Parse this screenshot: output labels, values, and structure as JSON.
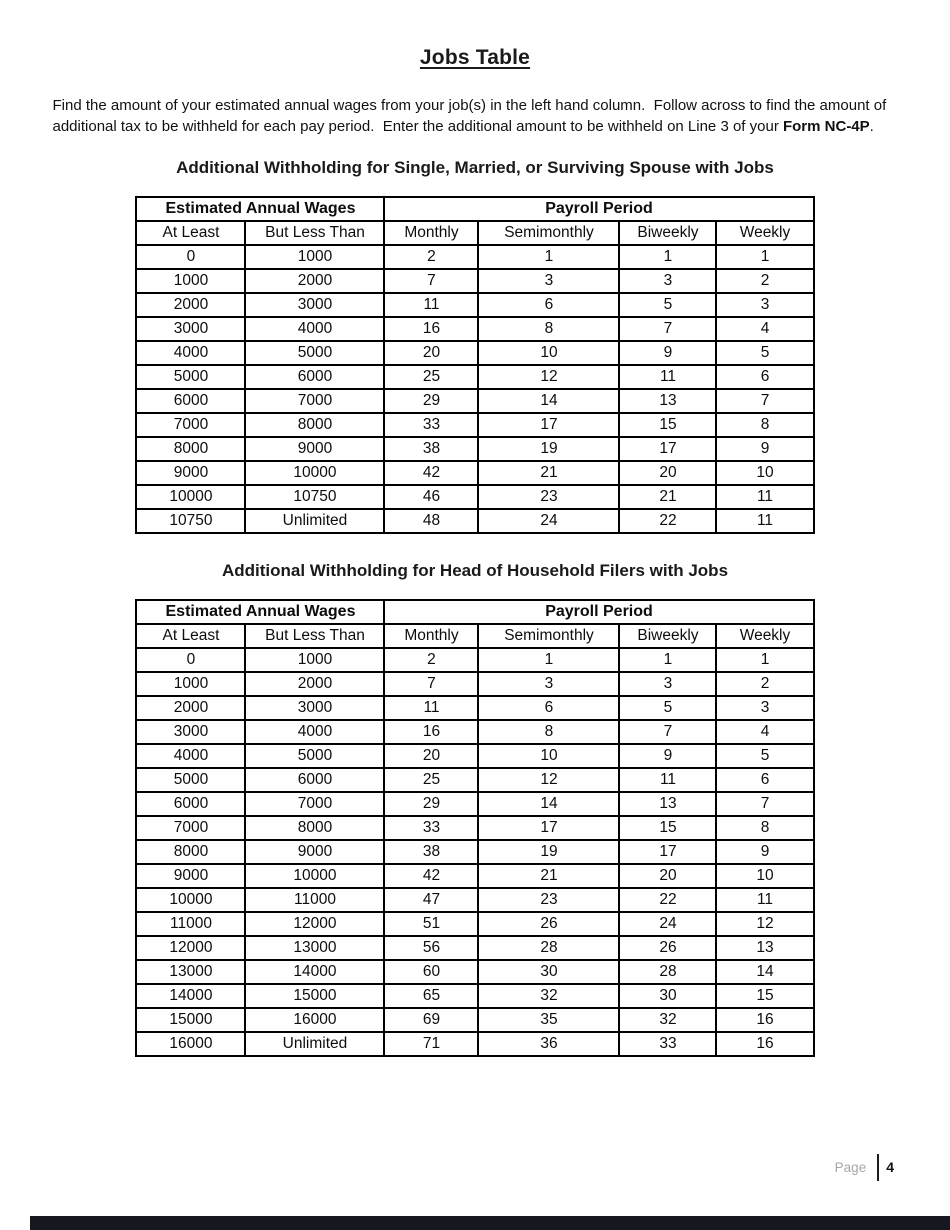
{
  "page": {
    "title": "Jobs Table",
    "intro": {
      "line1": "Find the amount of your estimated annual wages from your job(s) in the left hand column.  Follow across to find the amount of",
      "line2_pre": "additional tax to be withheld for each pay period.  Enter the additional amount to be withheld on Line 3 of your ",
      "line2_bold": "Form NC-4P",
      "line2_suffix": "."
    },
    "footer": {
      "page_label": "Page",
      "page_number": "4"
    },
    "colors": {
      "text": "#1a1a1a",
      "table_border": "#000000",
      "footer_label_gray": "#a7a7a7",
      "bottom_bar": "#17171f"
    }
  },
  "tables": [
    {
      "title": "Additional Withholding for Single, Married, or Surviving Spouse with Jobs",
      "group_headers": {
        "wages": "Estimated Annual Wages",
        "payroll": "Payroll Period"
      },
      "columns": [
        "At Least",
        "But Less Than",
        "Monthly",
        "Semimonthly",
        "Biweekly",
        "Weekly"
      ],
      "rows": [
        [
          "0",
          "1000",
          "2",
          "1",
          "1",
          "1"
        ],
        [
          "1000",
          "2000",
          "7",
          "3",
          "3",
          "2"
        ],
        [
          "2000",
          "3000",
          "11",
          "6",
          "5",
          "3"
        ],
        [
          "3000",
          "4000",
          "16",
          "8",
          "7",
          "4"
        ],
        [
          "4000",
          "5000",
          "20",
          "10",
          "9",
          "5"
        ],
        [
          "5000",
          "6000",
          "25",
          "12",
          "11",
          "6"
        ],
        [
          "6000",
          "7000",
          "29",
          "14",
          "13",
          "7"
        ],
        [
          "7000",
          "8000",
          "33",
          "17",
          "15",
          "8"
        ],
        [
          "8000",
          "9000",
          "38",
          "19",
          "17",
          "9"
        ],
        [
          "9000",
          "10000",
          "42",
          "21",
          "20",
          "10"
        ],
        [
          "10000",
          "10750",
          "46",
          "23",
          "21",
          "11"
        ],
        [
          "10750",
          "Unlimited",
          "48",
          "24",
          "22",
          "11"
        ]
      ]
    },
    {
      "title": "Additional Withholding for Head of Household Filers with Jobs",
      "group_headers": {
        "wages": "Estimated Annual Wages",
        "payroll": "Payroll Period"
      },
      "columns": [
        "At Least",
        "But Less Than",
        "Monthly",
        "Semimonthly",
        "Biweekly",
        "Weekly"
      ],
      "rows": [
        [
          "0",
          "1000",
          "2",
          "1",
          "1",
          "1"
        ],
        [
          "1000",
          "2000",
          "7",
          "3",
          "3",
          "2"
        ],
        [
          "2000",
          "3000",
          "11",
          "6",
          "5",
          "3"
        ],
        [
          "3000",
          "4000",
          "16",
          "8",
          "7",
          "4"
        ],
        [
          "4000",
          "5000",
          "20",
          "10",
          "9",
          "5"
        ],
        [
          "5000",
          "6000",
          "25",
          "12",
          "11",
          "6"
        ],
        [
          "6000",
          "7000",
          "29",
          "14",
          "13",
          "7"
        ],
        [
          "7000",
          "8000",
          "33",
          "17",
          "15",
          "8"
        ],
        [
          "8000",
          "9000",
          "38",
          "19",
          "17",
          "9"
        ],
        [
          "9000",
          "10000",
          "42",
          "21",
          "20",
          "10"
        ],
        [
          "10000",
          "11000",
          "47",
          "23",
          "22",
          "11"
        ],
        [
          "11000",
          "12000",
          "51",
          "26",
          "24",
          "12"
        ],
        [
          "12000",
          "13000",
          "56",
          "28",
          "26",
          "13"
        ],
        [
          "13000",
          "14000",
          "60",
          "30",
          "28",
          "14"
        ],
        [
          "14000",
          "15000",
          "65",
          "32",
          "30",
          "15"
        ],
        [
          "15000",
          "16000",
          "69",
          "35",
          "32",
          "16"
        ],
        [
          "16000",
          "Unlimited",
          "71",
          "36",
          "33",
          "16"
        ]
      ]
    }
  ]
}
